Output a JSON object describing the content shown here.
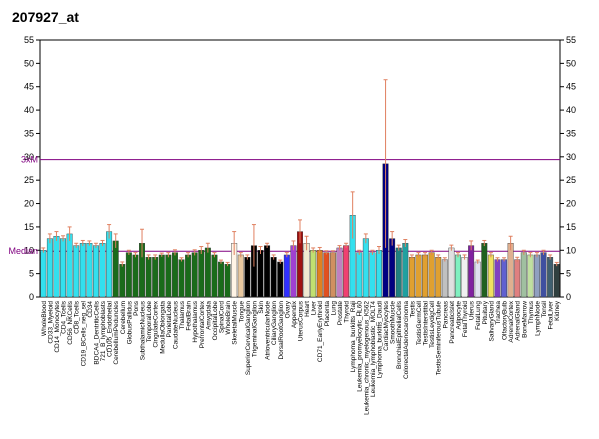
{
  "chart_data": {
    "type": "bar",
    "title": "207927_at",
    "categories": [
      "WholeBlood",
      "CD33_Myeloid",
      "CD14_Monocytes",
      "CD4_Tcells",
      "CD56_NKCells",
      "CD8_Tcells",
      "CD19_BCells_neg_sel",
      "CD34",
      "BDCA4_DentriticCells",
      "721_B_lymphoblasts",
      "CD105_Endothelial",
      "CerebellumPeduncles",
      "Cerebellum",
      "GlobusPallidus",
      "Pons",
      "SubthalamicNucleus",
      "TemporalLobe",
      "CingulateCortex",
      "MedullaOblongata",
      "ParietalLobe",
      "CaudateNucleus",
      "Thalamus",
      "FetalBrain",
      "Hypothalamus",
      "PrefrontalCortex",
      "Amygdala",
      "OccipitalLobe",
      "SpinalCord",
      "WholeBrain",
      "SkeletalMuscle",
      "Tongue",
      "SuperiorCervicalGanglion",
      "TrigeminalGanglion",
      "Skin",
      "AtrioventricularNode",
      "CiliaryGanglion",
      "DorsalRootGanglion",
      "Ovary",
      "Appendix",
      "UterusCorpus",
      "Heart",
      "Liver",
      "CD71_EarlyErythroid",
      "Placenta",
      "Lung",
      "Prostate",
      "Thyroid",
      "Lymphoma_burkitts_Raji",
      "Leukemia_promyelocytic_HL60",
      "Leukemia_chronic_myelogenous_K562",
      "Leukemia_lymphoblastic_MOLT4",
      "Lymphoma_burkitts_Daudi",
      "CardiacMyocytes",
      "SmoothMuscle",
      "BronchialEpithelialCells",
      "ColorectalAdenocarcinoma",
      "Testis",
      "TestisGermCell",
      "TestisInterstitial",
      "TestisLeydigCell",
      "TestisSeminiferousTubule",
      "Pancreas",
      "PancreaticIslet",
      "Adipocyte",
      "FetalThyroid",
      "Uterus",
      "FetalLung",
      "Pituitary",
      "SalivaryGland",
      "Trachea",
      "OlfactoryBulb",
      "AdrenalCortex",
      "AdrenalGland",
      "BoneMarrow",
      "Thymus",
      "LymphNode",
      "Tonsil",
      "FetalLiver",
      "Kidney"
    ],
    "values": [
      10,
      12.5,
      13,
      12.5,
      13.5,
      11,
      11.5,
      11.5,
      11,
      11.5,
      14,
      12,
      7,
      9.5,
      9,
      11.5,
      8.5,
      8.5,
      9,
      9,
      9.5,
      8,
      9,
      9.5,
      10,
      10.5,
      9,
      7.5,
      7,
      11.5,
      9,
      8.5,
      11,
      10,
      11,
      8.5,
      7.5,
      9,
      11,
      14,
      11.5,
      10,
      10,
      9.5,
      9.5,
      10.5,
      11,
      17.5,
      9.5,
      12.5,
      9.5,
      10,
      28.5,
      12.5,
      10.5,
      11.5,
      8.5,
      9,
      9,
      9.5,
      8.5,
      8,
      10.5,
      9,
      8.5,
      11,
      7.5,
      11.5,
      9,
      8,
      8,
      11.5,
      8,
      9.5,
      9,
      9,
      9.5,
      8.5,
      7
    ],
    "errors": [
      0.5,
      1,
      1,
      0.6,
      1.5,
      0.5,
      0.6,
      0.5,
      0.5,
      0.6,
      1.5,
      1.5,
      0.5,
      0.5,
      0.5,
      3,
      0.5,
      0.5,
      0.4,
      0.5,
      0.6,
      0.4,
      0.5,
      0.6,
      0.8,
      1,
      0.5,
      0.4,
      0.4,
      2.5,
      0.5,
      0.5,
      4.5,
      0.8,
      0.5,
      0.5,
      0.4,
      0.5,
      1,
      2.5,
      1.5,
      0.5,
      0.6,
      0.4,
      0.4,
      0.5,
      0.5,
      5,
      0.5,
      1,
      0.5,
      0.8,
      18,
      1.5,
      0.6,
      0.8,
      0.5,
      0.5,
      0.5,
      0.5,
      0.5,
      0.4,
      0.6,
      0.5,
      0.5,
      1,
      0.4,
      0.6,
      0.5,
      0.4,
      0.4,
      1.5,
      0.5,
      0.5,
      0.5,
      0.5,
      0.5,
      0.5,
      0.4
    ],
    "colors": [
      "#33e0ee",
      "#33e0ee",
      "#33e0ee",
      "#33e0ee",
      "#33e0ee",
      "#33e0ee",
      "#33e0ee",
      "#33e0ee",
      "#33e0ee",
      "#33e0ee",
      "#33e0ee",
      "#1a6b1a",
      "#1a6b1a",
      "#1a6b1a",
      "#1a6b1a",
      "#1a6b1a",
      "#1a6b1a",
      "#1a6b1a",
      "#1a6b1a",
      "#1a6b1a",
      "#1a6b1a",
      "#1a6b1a",
      "#1a6b1a",
      "#1a6b1a",
      "#1a6b1a",
      "#1a6b1a",
      "#1a6b1a",
      "#1a6b1a",
      "#1a6b1a",
      "#fff4e6",
      "#e8c8a0",
      "#000000",
      "#000000",
      "#000000",
      "#000000",
      "#000000",
      "#000000",
      "#3030ff",
      "#a040d0",
      "#a01010",
      "#f0e8d0",
      "#c0e070",
      "#e08020",
      "#e05020",
      "#d09060",
      "#c080c0",
      "#f04070",
      "#33e0ee",
      "#33e0ee",
      "#33e0ee",
      "#33e0ee",
      "#33e0ee",
      "#000080",
      "#000080",
      "#208080",
      "#20a0a0",
      "#e0a030",
      "#e0a030",
      "#e0a030",
      "#e0a030",
      "#e0a030",
      "#c0c0c0",
      "#e0e0e0",
      "#80f0c0",
      "#f0f0f0",
      "#8020a0",
      "#e0e0f0",
      "#206020",
      "#f0e060",
      "#8040c0",
      "#6060d0",
      "#e0b090",
      "#e08080",
      "#a0c0a0",
      "#c0e0a0",
      "#90a0c0",
      "#4050a0",
      "#406070",
      "#304040"
    ],
    "error_color": "#e08060",
    "ylim": [
      0,
      55
    ],
    "yticks": [
      0,
      5,
      10,
      15,
      20,
      25,
      30,
      35,
      40,
      45,
      50,
      55
    ],
    "median_line": {
      "label": "Median",
      "value": 9.8,
      "color": "#800080"
    },
    "threshold_line": {
      "label": "3xM",
      "value": 29.4,
      "color": "#800080"
    }
  }
}
